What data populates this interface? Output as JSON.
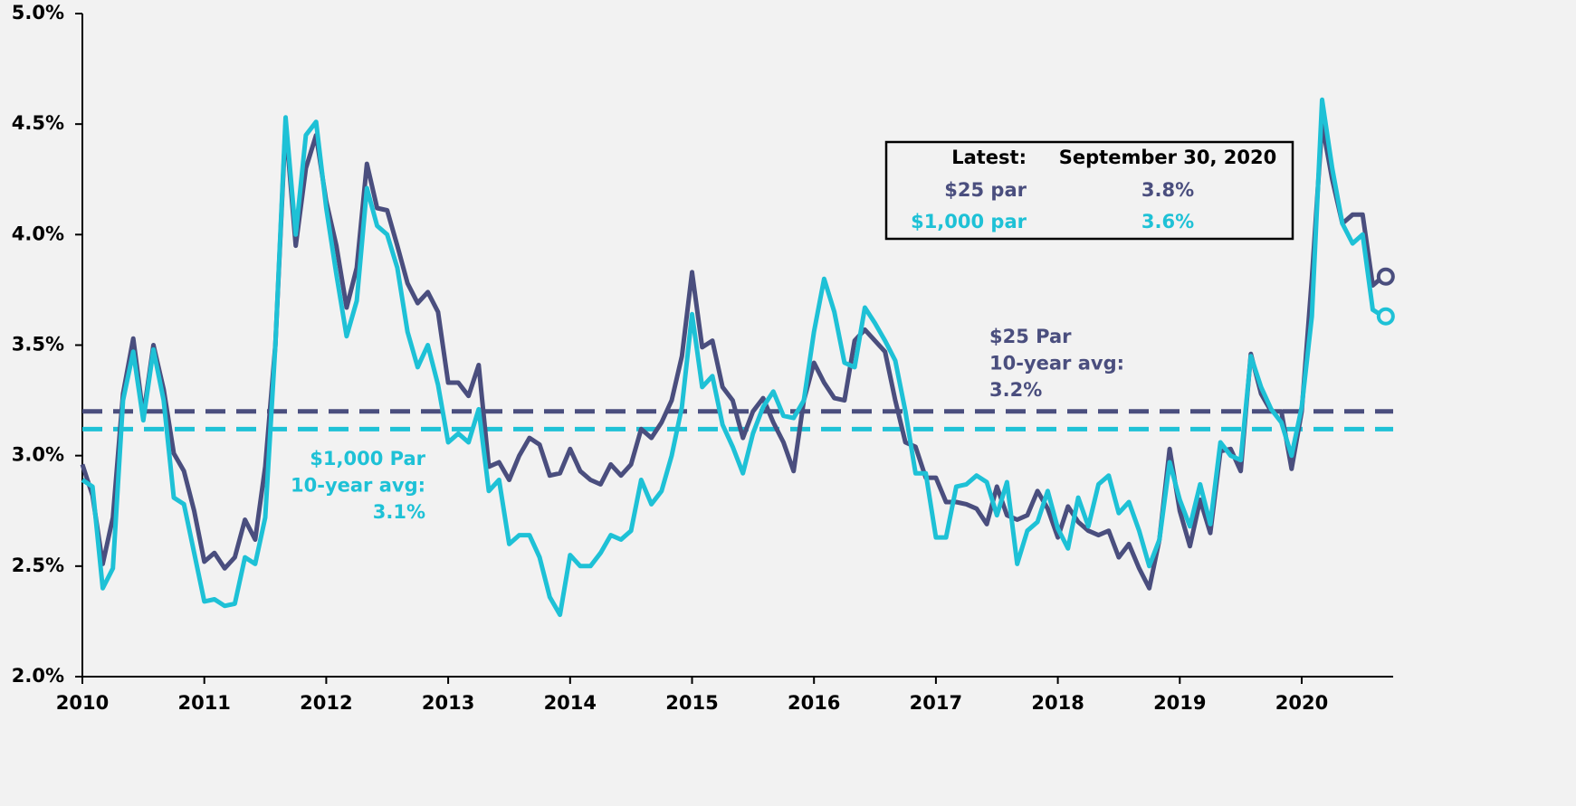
{
  "chart_data": {
    "type": "line",
    "x": [
      2010,
      2010.083,
      2010.167,
      2010.25,
      2010.333,
      2010.417,
      2010.5,
      2010.583,
      2010.667,
      2010.75,
      2010.833,
      2010.917,
      2011,
      2011.083,
      2011.167,
      2011.25,
      2011.333,
      2011.417,
      2011.5,
      2011.583,
      2011.667,
      2011.75,
      2011.833,
      2011.917,
      2012,
      2012.083,
      2012.167,
      2012.25,
      2012.333,
      2012.417,
      2012.5,
      2012.583,
      2012.667,
      2012.75,
      2012.833,
      2012.917,
      2013,
      2013.083,
      2013.167,
      2013.25,
      2013.333,
      2013.417,
      2013.5,
      2013.583,
      2013.667,
      2013.75,
      2013.833,
      2013.917,
      2014,
      2014.083,
      2014.167,
      2014.25,
      2014.333,
      2014.417,
      2014.5,
      2014.583,
      2014.667,
      2014.75,
      2014.833,
      2014.917,
      2015,
      2015.083,
      2015.167,
      2015.25,
      2015.333,
      2015.417,
      2015.5,
      2015.583,
      2015.667,
      2015.75,
      2015.833,
      2015.917,
      2016,
      2016.083,
      2016.167,
      2016.25,
      2016.333,
      2016.417,
      2016.5,
      2016.583,
      2016.667,
      2016.75,
      2016.833,
      2016.917,
      2017,
      2017.083,
      2017.167,
      2017.25,
      2017.333,
      2017.417,
      2017.5,
      2017.583,
      2017.667,
      2017.75,
      2017.833,
      2017.917,
      2018,
      2018.083,
      2018.167,
      2018.25,
      2018.333,
      2018.417,
      2018.5,
      2018.583,
      2018.667,
      2018.75,
      2018.833,
      2018.917,
      2019,
      2019.083,
      2019.167,
      2019.25,
      2019.333,
      2019.417,
      2019.5,
      2019.583,
      2019.667,
      2019.75,
      2019.833,
      2019.917,
      2020,
      2020.083,
      2020.167,
      2020.25,
      2020.333,
      2020.417,
      2020.5,
      2020.583,
      2020.667
    ],
    "series": [
      {
        "name": "$25 par",
        "color": "#4a4e7e",
        "latest_label": "3.8%",
        "values": [
          2.96,
          2.82,
          2.51,
          2.72,
          3.28,
          3.53,
          3.18,
          3.5,
          3.3,
          3.01,
          2.93,
          2.75,
          2.52,
          2.56,
          2.49,
          2.54,
          2.71,
          2.62,
          2.95,
          3.5,
          4.5,
          3.95,
          4.3,
          4.45,
          4.15,
          3.95,
          3.67,
          3.85,
          4.32,
          4.12,
          4.11,
          3.95,
          3.78,
          3.69,
          3.74,
          3.65,
          3.33,
          3.33,
          3.27,
          3.41,
          2.95,
          2.97,
          2.89,
          3.0,
          3.08,
          3.05,
          2.91,
          2.92,
          3.03,
          2.93,
          2.89,
          2.87,
          2.96,
          2.91,
          2.96,
          3.12,
          3.08,
          3.15,
          3.25,
          3.45,
          3.83,
          3.49,
          3.52,
          3.31,
          3.25,
          3.08,
          3.2,
          3.26,
          3.15,
          3.06,
          2.93,
          3.25,
          3.42,
          3.33,
          3.26,
          3.25,
          3.52,
          3.57,
          3.52,
          3.47,
          3.25,
          3.06,
          3.04,
          2.9,
          2.9,
          2.79,
          2.79,
          2.78,
          2.76,
          2.69,
          2.86,
          2.73,
          2.71,
          2.73,
          2.84,
          2.76,
          2.63,
          2.77,
          2.7,
          2.66,
          2.64,
          2.66,
          2.54,
          2.6,
          2.49,
          2.4,
          2.62,
          3.03,
          2.75,
          2.59,
          2.8,
          2.65,
          3.02,
          3.03,
          2.93,
          3.46,
          3.28,
          3.2,
          3.2,
          2.94,
          3.2,
          3.8,
          4.5,
          4.25,
          4.05,
          4.09,
          4.09,
          3.77,
          3.81
        ]
      },
      {
        "name": "$1,000 par",
        "color": "#1ec1d6",
        "latest_label": "3.6%",
        "values": [
          2.89,
          2.86,
          2.4,
          2.49,
          3.25,
          3.47,
          3.16,
          3.48,
          3.25,
          2.81,
          2.78,
          2.56,
          2.34,
          2.35,
          2.32,
          2.33,
          2.54,
          2.51,
          2.72,
          3.5,
          4.53,
          4.0,
          4.45,
          4.51,
          4.12,
          3.82,
          3.54,
          3.7,
          4.21,
          4.04,
          4.0,
          3.85,
          3.56,
          3.4,
          3.5,
          3.32,
          3.06,
          3.1,
          3.06,
          3.21,
          2.84,
          2.89,
          2.6,
          2.64,
          2.64,
          2.54,
          2.36,
          2.28,
          2.55,
          2.5,
          2.5,
          2.56,
          2.64,
          2.62,
          2.66,
          2.89,
          2.78,
          2.84,
          3.0,
          3.22,
          3.64,
          3.31,
          3.36,
          3.14,
          3.04,
          2.92,
          3.1,
          3.22,
          3.29,
          3.18,
          3.17,
          3.25,
          3.56,
          3.8,
          3.65,
          3.42,
          3.4,
          3.67,
          3.6,
          3.52,
          3.43,
          3.2,
          2.92,
          2.92,
          2.63,
          2.63,
          2.86,
          2.87,
          2.91,
          2.88,
          2.73,
          2.88,
          2.51,
          2.66,
          2.7,
          2.84,
          2.67,
          2.58,
          2.81,
          2.68,
          2.87,
          2.91,
          2.74,
          2.79,
          2.66,
          2.5,
          2.62,
          2.97,
          2.8,
          2.68,
          2.87,
          2.69,
          3.06,
          3.0,
          2.98,
          3.45,
          3.31,
          3.21,
          3.15,
          3.0,
          3.22,
          3.63,
          4.61,
          4.3,
          4.05,
          3.96,
          4.0,
          3.66,
          3.63
        ]
      }
    ],
    "reference_lines": [
      {
        "value": 3.2,
        "color": "#4a4e7e",
        "label": [
          "$25 Par",
          "10-year avg:",
          "3.2%"
        ]
      },
      {
        "value": 3.12,
        "color": "#1ec1d6",
        "label": [
          "$1,000 Par",
          "10-year avg:",
          "3.1%"
        ]
      }
    ],
    "legend": {
      "title": "Latest:",
      "date": "September 30, 2020"
    },
    "xlim": [
      2010,
      2020.75
    ],
    "xticks": [
      2010,
      2011,
      2012,
      2013,
      2014,
      2015,
      2016,
      2017,
      2018,
      2019,
      2020
    ],
    "ylim": [
      2,
      5
    ],
    "yticks": [
      {
        "value": 2,
        "label": "2.0%"
      },
      {
        "value": 2.5,
        "label": "2.5%"
      },
      {
        "value": 3,
        "label": "3.0%"
      },
      {
        "value": 3.5,
        "label": "3.5%"
      },
      {
        "value": 4,
        "label": "4.0%"
      },
      {
        "value": 4.5,
        "label": "4.5%"
      },
      {
        "value": 5,
        "label": "5.0%"
      }
    ]
  }
}
